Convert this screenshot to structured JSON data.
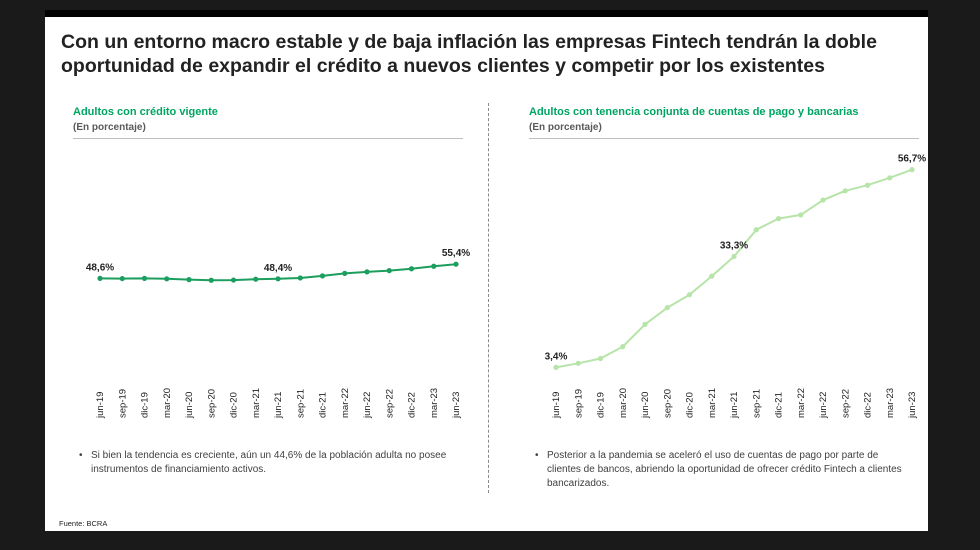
{
  "title": "Con un entorno macro estable y de baja inflación las empresas Fintech tendrán la doble oportunidad de expandir el crédito a nuevos clientes y competir por los existentes",
  "source": "Fuente: BCRA",
  "panels": [
    {
      "title": "Adultos con crédito vigente",
      "subtitle": "(En porcentaje)",
      "bullet": "Si bien la tendencia es creciente, aún un 44,6% de la población adulta no posee instrumentos de financiamiento activos."
    },
    {
      "title": "Adultos con tenencia conjunta de cuentas de pago y bancarias",
      "subtitle": "(En porcentaje)",
      "bullet": "Posterior a la pandemia se aceleró el uso de cuentas de pago por parte de clientes de bancos, abriendo la oportunidad de ofrecer crédito Fintech a clientes bancarizados."
    }
  ],
  "colors": {
    "accent": "#00a562",
    "line1": "#1b9e5e",
    "line2": "#b7e4a8"
  },
  "chart_data": [
    {
      "type": "line",
      "title": "Adultos con crédito vigente",
      "subtitle": "(En porcentaje)",
      "categories": [
        "jun-19",
        "sep-19",
        "dic-19",
        "mar-20",
        "jun-20",
        "sep-20",
        "dic-20",
        "mar-21",
        "jun-21",
        "sep-21",
        "dic-21",
        "mar-22",
        "jun-22",
        "sep-22",
        "dic-22",
        "mar-23",
        "jun-23"
      ],
      "values": [
        48.6,
        48.5,
        48.6,
        48.4,
        48.0,
        47.7,
        47.8,
        48.2,
        48.4,
        48.8,
        49.8,
        51.0,
        51.7,
        52.3,
        53.2,
        54.4,
        55.4
      ],
      "data_labels": [
        {
          "index": 0,
          "text": "48,6%"
        },
        {
          "index": 8,
          "text": "48,4%"
        },
        {
          "index": 16,
          "text": "55,4%"
        }
      ],
      "ylim": [
        0,
        110
      ],
      "grid": false,
      "legend": "none"
    },
    {
      "type": "line",
      "title": "Adultos con tenencia conjunta de cuentas de pago y bancarias",
      "subtitle": "(En porcentaje)",
      "categories": [
        "jun-19",
        "sep-19",
        "dic-19",
        "mar-20",
        "jun-20",
        "sep-20",
        "dic-20",
        "mar-21",
        "jun-21",
        "sep-21",
        "dic-21",
        "mar-22",
        "jun-22",
        "sep-22",
        "dic-22",
        "mar-23",
        "jun-23"
      ],
      "values": [
        3.4,
        4.5,
        5.8,
        9.0,
        15.0,
        19.5,
        23.0,
        28.0,
        33.3,
        40.5,
        43.5,
        44.5,
        48.5,
        51.0,
        52.5,
        54.5,
        56.7
      ],
      "data_labels": [
        {
          "index": 0,
          "text": "3,4%"
        },
        {
          "index": 8,
          "text": "33,3%"
        },
        {
          "index": 16,
          "text": "56,7%"
        }
      ],
      "ylim": [
        0,
        62
      ],
      "grid": false,
      "legend": "none"
    }
  ]
}
